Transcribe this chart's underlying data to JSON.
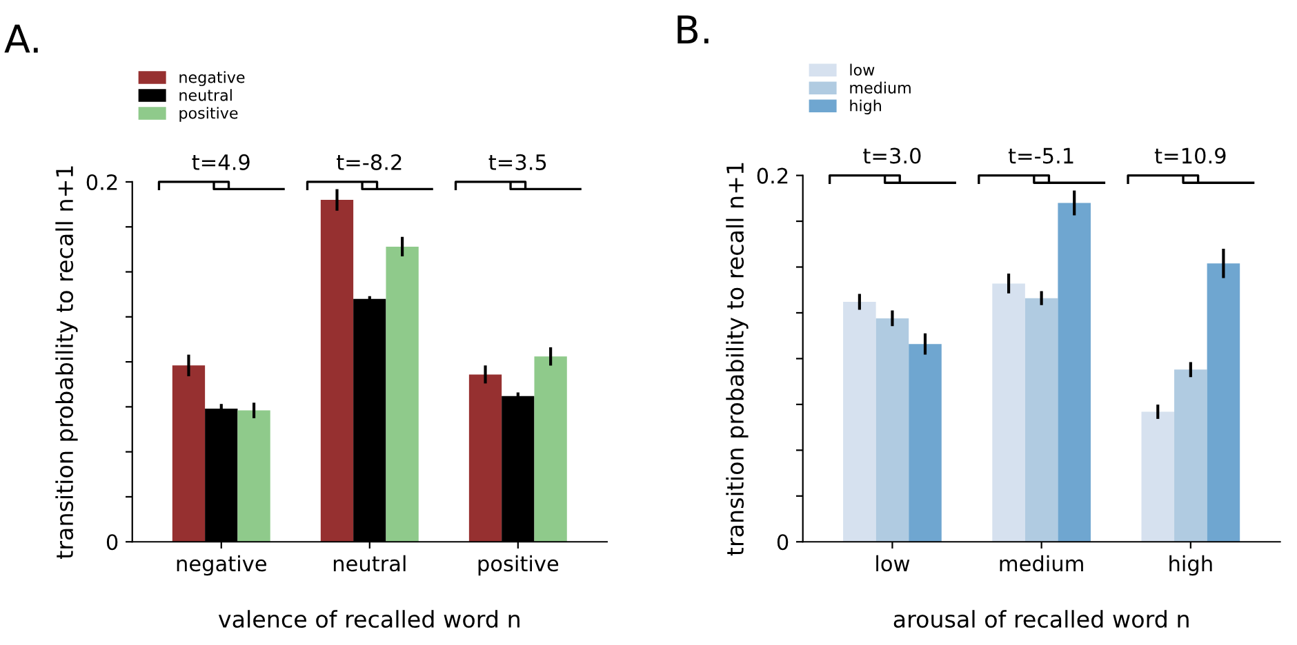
{
  "chart_data": [
    {
      "type": "bar",
      "categories": [
        "negative",
        "neutral",
        "positive"
      ],
      "xlabel": "valence of recalled word n",
      "ylabel": "transition probability to recall n+1",
      "ylim": [
        0,
        0.2
      ],
      "yticks": [
        0,
        {
          "value": 0.025,
          "label": null
        },
        {
          "value": 0.05,
          "label": null
        },
        {
          "value": 0.075,
          "label": null
        },
        {
          "value": 0.1,
          "label": null
        },
        {
          "value": 0.125,
          "label": null
        },
        {
          "value": 0.15,
          "label": null
        },
        {
          "value": 0.175,
          "label": null
        },
        0.2
      ],
      "legend": "top left",
      "grid": false,
      "series": [
        {
          "name": "negative",
          "color": "#963030",
          "values": [
            0.098,
            0.19,
            0.093
          ],
          "errors": [
            0.006,
            0.006,
            0.005
          ]
        },
        {
          "name": "neutral",
          "color": "#000000",
          "values": [
            0.074,
            0.135,
            0.081
          ],
          "errors": [
            0.0026,
            0.0015,
            0.002
          ]
        },
        {
          "name": "positive",
          "color": "#8fca8b",
          "values": [
            0.073,
            0.164,
            0.103
          ],
          "errors": [
            0.0043,
            0.0054,
            0.0051
          ]
        }
      ],
      "annotations": [
        "A.",
        "t=4.9",
        "t=-8.2",
        "t=3.5"
      ]
    },
    {
      "type": "bar",
      "categories": [
        "low",
        "medium",
        "high"
      ],
      "xlabel": "arousal of recalled word n",
      "ylabel": "transition probability to recall n+1",
      "ylim": [
        0,
        0.2
      ],
      "yticks": [
        0,
        {
          "value": 0.025,
          "label": null
        },
        {
          "value": 0.05,
          "label": null
        },
        {
          "value": 0.075,
          "label": null
        },
        {
          "value": 0.1,
          "label": null
        },
        {
          "value": 0.125,
          "label": null
        },
        {
          "value": 0.15,
          "label": null
        },
        {
          "value": 0.175,
          "label": null
        },
        0.2
      ],
      "legend": "top left",
      "grid": false,
      "series": [
        {
          "name": "low",
          "color": "#d6e1ef",
          "values": [
            0.131,
            0.141,
            0.071
          ],
          "errors": [
            0.0043,
            0.0054,
            0.0039
          ]
        },
        {
          "name": "medium",
          "color": "#b0cbe1",
          "values": [
            0.122,
            0.133,
            0.094
          ],
          "errors": [
            0.0043,
            0.0038,
            0.0041
          ]
        },
        {
          "name": "high",
          "color": "#6fa6d0",
          "values": [
            0.108,
            0.185,
            0.152
          ],
          "errors": [
            0.0058,
            0.0068,
            0.008
          ]
        }
      ],
      "annotations": [
        "B.",
        "t=3.0",
        "t=-5.1",
        "t=10.9"
      ]
    }
  ]
}
